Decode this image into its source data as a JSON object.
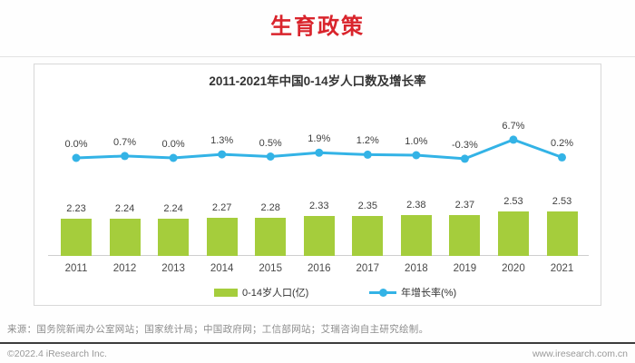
{
  "page": {
    "title": "生育政策",
    "source_note": "来源：国务院新闻办公室网站；国家统计局；中国政府网；工信部网站；艾瑞咨询自主研究绘制。",
    "footer": {
      "copyright": "©2022.4 iResearch Inc.",
      "website": "www.iresearch.com.cn"
    }
  },
  "colors": {
    "title_red": "#D9242C",
    "bar_green": "#a5cd3c",
    "line_blue": "#33b3e6",
    "label_dark": "#404040",
    "axis_gray": "#cfcfcf"
  },
  "chart_data": {
    "type": "bar",
    "combo": "bar+line",
    "title": "2011-2021年中国0-14岁人口数及增长率",
    "categories": [
      "2011",
      "2012",
      "2013",
      "2014",
      "2015",
      "2016",
      "2017",
      "2018",
      "2019",
      "2020",
      "2021"
    ],
    "series": [
      {
        "name": "0-14岁人口(亿)",
        "type": "bar",
        "values": [
          2.23,
          2.24,
          2.24,
          2.27,
          2.28,
          2.33,
          2.35,
          2.38,
          2.37,
          2.53,
          2.53
        ]
      },
      {
        "name": "年增长率(%)",
        "type": "line",
        "values": [
          0.0,
          0.7,
          0.0,
          1.3,
          0.5,
          1.9,
          1.2,
          1.0,
          -0.3,
          6.7,
          0.2
        ],
        "labels": [
          "0.0%",
          "0.7%",
          "0.0%",
          "1.3%",
          "0.5%",
          "1.9%",
          "1.2%",
          "1.0%",
          "-0.3%",
          "6.7%",
          "0.2%"
        ]
      }
    ],
    "legend": [
      "0-14岁人口(亿)",
      "年增长率(%)"
    ],
    "legend_position": "bottom",
    "grid": false,
    "data_labels": true
  }
}
